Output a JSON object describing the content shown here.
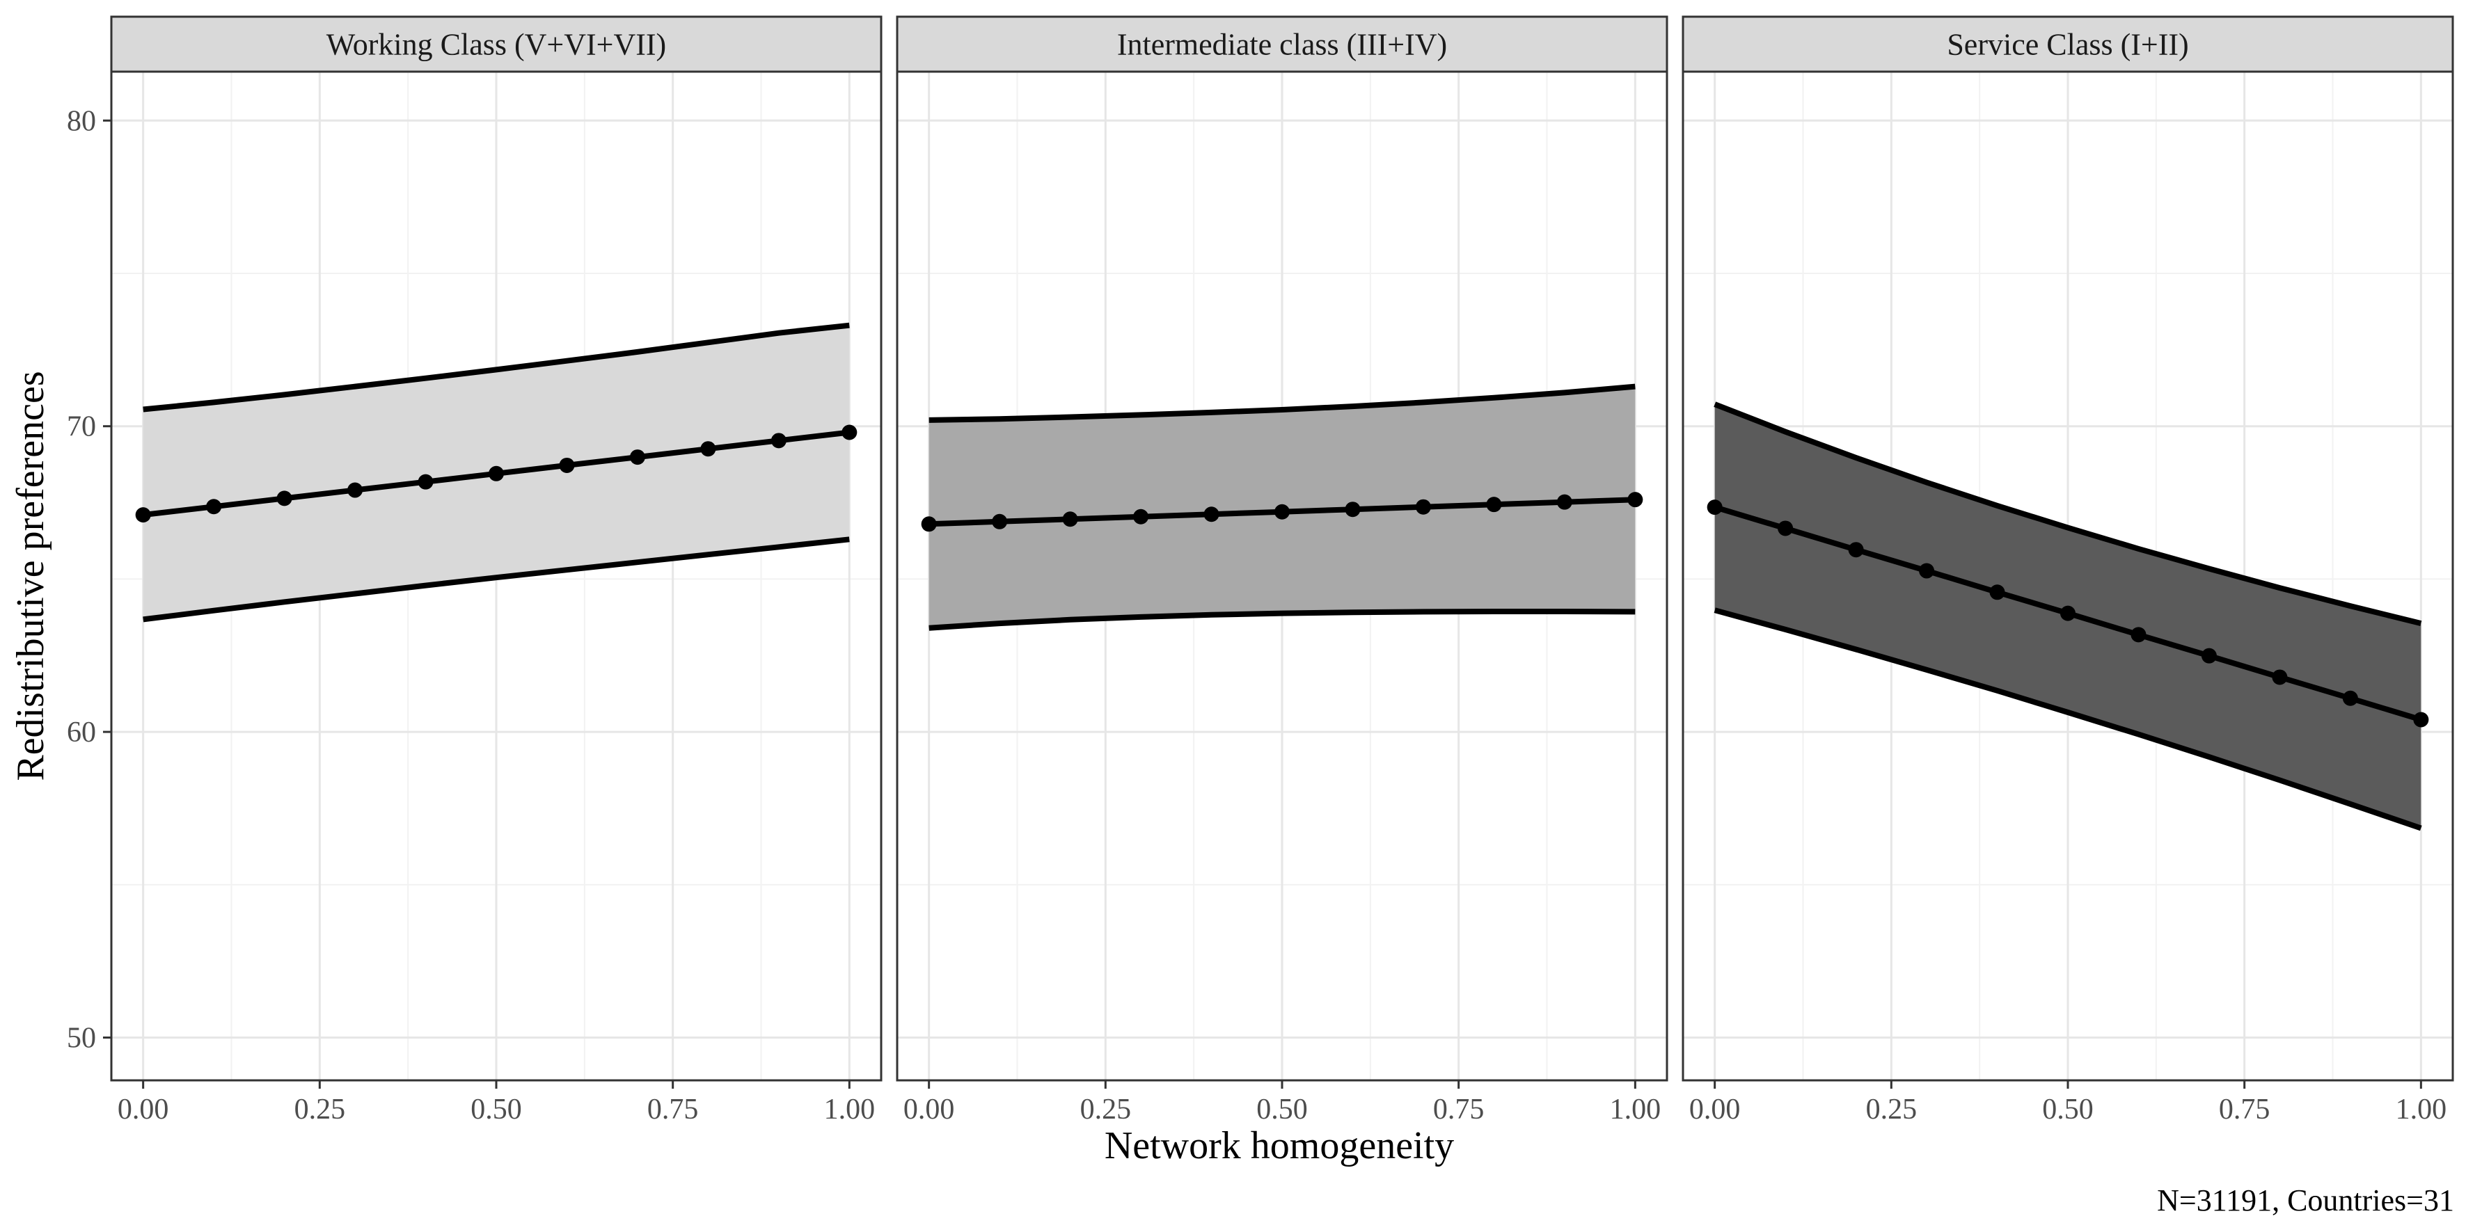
{
  "chart_data": {
    "type": "line",
    "layout": "facets",
    "xlabel": "Network homogeneity",
    "ylabel": "Redistributive preferences",
    "caption": "N=31191, Countries=31",
    "xlim": [
      -0.045,
      1.045
    ],
    "ylim": [
      48.6,
      81.6
    ],
    "x_ticks": [
      0,
      0.25,
      0.5,
      0.75,
      1
    ],
    "x_tick_labels": [
      "0.00",
      "0.25",
      "0.50",
      "0.75",
      "1.00"
    ],
    "y_ticks": [
      50,
      60,
      70,
      80
    ],
    "y_tick_labels": [
      "50",
      "60",
      "70",
      "80"
    ],
    "x": [
      0,
      0.1,
      0.2,
      0.3,
      0.4,
      0.5,
      0.6,
      0.7,
      0.8,
      0.9,
      1.0
    ],
    "facets": [
      {
        "name": "Working Class (V+VI+VII)",
        "fill": "#d9d9d9",
        "fit": [
          67.1,
          67.37,
          67.64,
          67.91,
          68.18,
          68.45,
          68.72,
          68.99,
          69.26,
          69.53,
          69.8
        ],
        "upper": [
          70.55,
          70.78,
          71.03,
          71.3,
          71.57,
          71.85,
          72.14,
          72.43,
          72.74,
          73.05,
          73.3
        ],
        "lower": [
          63.68,
          63.97,
          64.25,
          64.52,
          64.79,
          65.05,
          65.3,
          65.55,
          65.8,
          66.05,
          66.3
        ]
      },
      {
        "name": "Intermediate class (III+IV)",
        "fill": "#a9a9a9",
        "fit": [
          66.8,
          66.88,
          66.96,
          67.04,
          67.12,
          67.2,
          67.28,
          67.36,
          67.44,
          67.52,
          67.6
        ],
        "upper": [
          70.2,
          70.24,
          70.3,
          70.37,
          70.45,
          70.54,
          70.65,
          70.78,
          70.93,
          71.1,
          71.3
        ],
        "lower": [
          63.4,
          63.55,
          63.67,
          63.76,
          63.83,
          63.88,
          63.91,
          63.93,
          63.94,
          63.94,
          63.93
        ]
      },
      {
        "name": "Service Class (I+II)",
        "fill": "#5b5b5b",
        "fit": [
          67.35,
          66.66,
          65.96,
          65.27,
          64.57,
          63.88,
          63.18,
          62.49,
          61.79,
          61.1,
          60.4
        ],
        "upper": [
          70.72,
          69.82,
          68.97,
          68.16,
          67.4,
          66.68,
          65.99,
          65.34,
          64.71,
          64.12,
          63.55
        ],
        "lower": [
          63.98,
          63.35,
          62.7,
          62.03,
          61.35,
          60.64,
          59.92,
          59.18,
          58.42,
          57.64,
          56.85
        ]
      }
    ]
  }
}
